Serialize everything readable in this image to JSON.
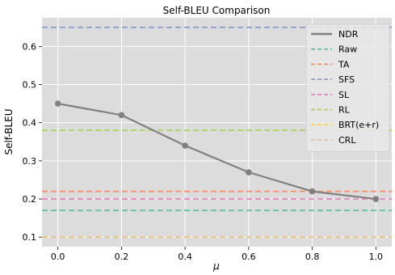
{
  "chart_data": {
    "type": "line",
    "title": "Self-BLEU Comparison",
    "xlabel": "μ",
    "ylabel": "Self-BLEU",
    "xlim": [
      -0.05,
      1.05
    ],
    "ylim": [
      0.075,
      0.675
    ],
    "xticks": [
      0.0,
      0.2,
      0.4,
      0.6,
      0.8,
      1.0
    ],
    "yticks": [
      0.1,
      0.2,
      0.3,
      0.4,
      0.5,
      0.6
    ],
    "xtick_labels": [
      "0.0",
      "0.2",
      "0.4",
      "0.6",
      "0.8",
      "1.0"
    ],
    "ytick_labels": [
      "0.1",
      "0.2",
      "0.3",
      "0.4",
      "0.5",
      "0.6"
    ],
    "grid": true,
    "background": "#dcdcdc",
    "legend_position": "top-right",
    "series": [
      {
        "name": "NDR",
        "style": "solid",
        "marker": "circle",
        "color": "#808080",
        "x": [
          0.0,
          0.2,
          0.4,
          0.6,
          0.8,
          1.0
        ],
        "y": [
          0.45,
          0.42,
          0.34,
          0.27,
          0.22,
          0.2
        ]
      }
    ],
    "baselines": [
      {
        "name": "Raw",
        "value": 0.17,
        "color": "#66c2a5",
        "style": "dashed"
      },
      {
        "name": "TA",
        "value": 0.22,
        "color": "#fc8d62",
        "style": "dashed"
      },
      {
        "name": "SFS",
        "value": 0.65,
        "color": "#8da0cb",
        "style": "dashed"
      },
      {
        "name": "SL",
        "value": 0.2,
        "color": "#e78ac3",
        "style": "dashed"
      },
      {
        "name": "RL",
        "value": 0.38,
        "color": "#a6d854",
        "style": "dashed"
      },
      {
        "name": "BRT(e+r)",
        "value": 0.1,
        "color": "#ffd92f",
        "style": "dashed"
      },
      {
        "name": "CRL",
        "value": 0.1,
        "color": "#e5c494",
        "style": "dashed"
      }
    ]
  }
}
